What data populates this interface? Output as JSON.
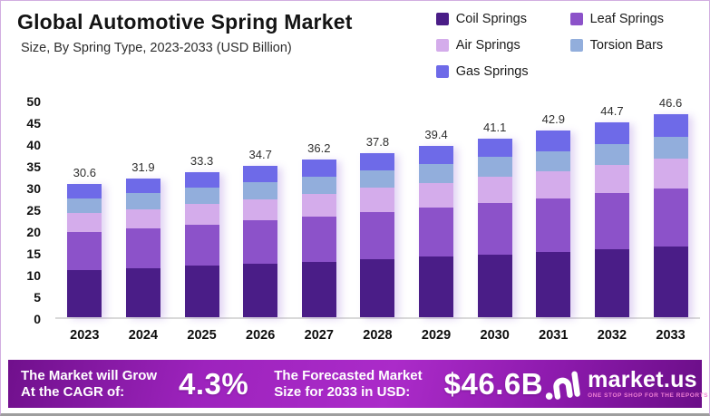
{
  "header": {
    "title": "Global Automotive Spring Market",
    "subtitle": "Size, By Spring Type, 2023-2033 (USD Billion)"
  },
  "chart_data": {
    "type": "bar",
    "stacked": true,
    "title": "Global Automotive Spring Market",
    "subtitle": "Size, By Spring Type, 2023-2033 (USD Billion)",
    "unit": "USD Billion",
    "categories": [
      "2023",
      "2024",
      "2025",
      "2026",
      "2027",
      "2028",
      "2029",
      "2030",
      "2031",
      "2032",
      "2033"
    ],
    "series": [
      {
        "name": "Coil Springs",
        "color": "#4a1d87",
        "values": [
          10.9,
          11.3,
          11.8,
          12.3,
          12.8,
          13.4,
          13.9,
          14.4,
          15.0,
          15.6,
          16.2
        ]
      },
      {
        "name": "Leaf Springs",
        "color": "#8c52c9",
        "values": [
          8.7,
          9.1,
          9.5,
          9.9,
          10.3,
          10.8,
          11.3,
          11.9,
          12.3,
          12.9,
          13.4
        ]
      },
      {
        "name": "Air Springs",
        "color": "#d4aceb",
        "values": [
          4.3,
          4.5,
          4.7,
          4.9,
          5.2,
          5.5,
          5.7,
          5.9,
          6.2,
          6.5,
          6.9
        ]
      },
      {
        "name": "Torsion Bars",
        "color": "#92aedc",
        "values": [
          3.5,
          3.6,
          3.8,
          3.9,
          4.0,
          4.1,
          4.3,
          4.6,
          4.7,
          4.8,
          5.0
        ]
      },
      {
        "name": "Gas Springs",
        "color": "#6e6ae8",
        "values": [
          3.2,
          3.4,
          3.5,
          3.7,
          3.9,
          4.0,
          4.2,
          4.3,
          4.7,
          4.9,
          5.1
        ]
      }
    ],
    "totals": [
      30.6,
      31.9,
      33.3,
      34.7,
      36.2,
      37.8,
      39.4,
      41.1,
      42.9,
      44.7,
      46.6
    ],
    "ylim": [
      0,
      50
    ],
    "ytick_step": 5,
    "grid": false,
    "legend_position": "top-right"
  },
  "banner": {
    "left_line1": "The Market will Grow",
    "left_line2": "At the CAGR of:",
    "cagr_value": "4.3%",
    "mid_line1": "The Forecasted Market",
    "mid_line2": "Size for 2033 in USD:",
    "size_value": "$46.6B",
    "logo_text": "market.us",
    "logo_tagline": "ONE STOP SHOP FOR THE REPORTS",
    "gradient_colors": [
      "#70108c",
      "#ab2bc9",
      "#6b0e88"
    ]
  }
}
